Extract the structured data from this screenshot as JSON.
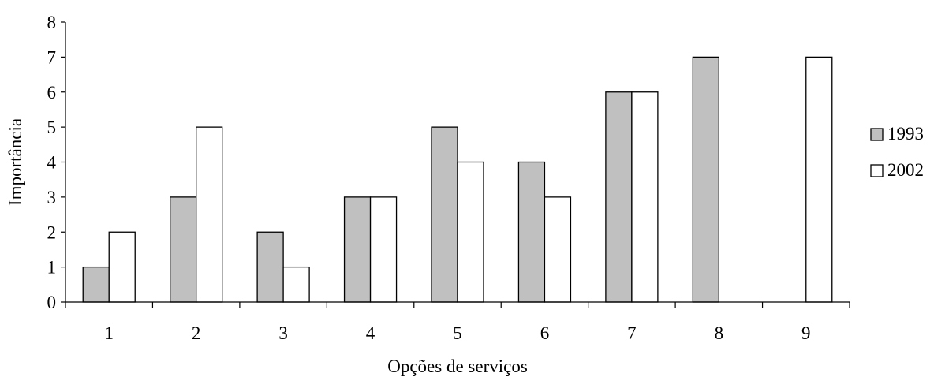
{
  "chart_data": {
    "type": "bar",
    "title": "",
    "xlabel": "Opções de serviços",
    "ylabel": "Importância",
    "categories": [
      "1",
      "2",
      "3",
      "4",
      "5",
      "6",
      "7",
      "8",
      "9"
    ],
    "series": [
      {
        "name": "1993",
        "values": [
          1,
          3,
          2,
          3,
          5,
          4,
          6,
          7,
          0
        ],
        "color": "#c0c0c0"
      },
      {
        "name": "2002",
        "values": [
          2,
          5,
          1,
          3,
          4,
          3,
          6,
          0,
          7
        ],
        "color": "#ffffff"
      }
    ],
    "ylim": [
      0,
      8
    ],
    "yticks": [
      "0",
      "1",
      "2",
      "3",
      "4",
      "5",
      "6",
      "7",
      "8"
    ],
    "grid": false,
    "legend_position": "right"
  }
}
